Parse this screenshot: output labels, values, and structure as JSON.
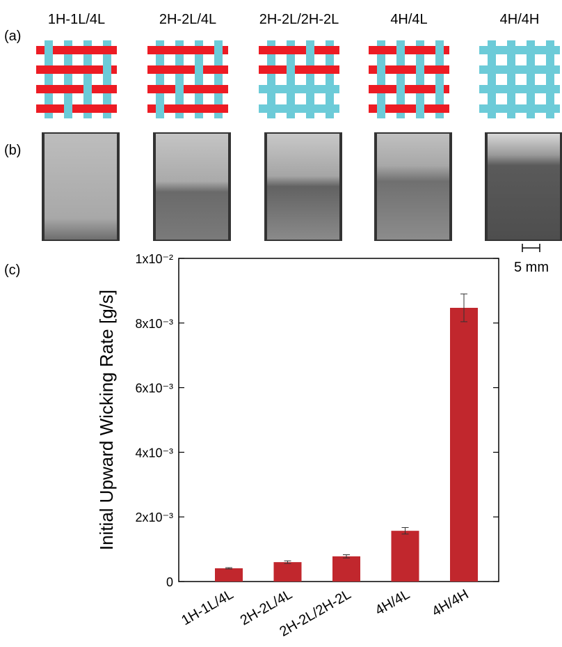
{
  "panel_labels": [
    "(a)",
    "(b)",
    "(c)"
  ],
  "patterns": [
    "1H-1L/4L",
    "2H-2L/4L",
    "2H-2L/2H-2L",
    "4H/4L",
    "4H/4H"
  ],
  "scale_bar": "5 mm",
  "chart_data": {
    "type": "bar",
    "y_label": "Initial Upward Wicking Rate [g/s]",
    "categories": [
      "1H-1L/4L",
      "2H-2L/4L",
      "2H-2L/2H-2L",
      "4H/4L",
      "4H/4H"
    ],
    "values": [
      0.00041,
      0.0006,
      0.00078,
      0.00157,
      0.00847
    ],
    "errors": [
      2e-05,
      4e-05,
      5e-05,
      0.0001,
      0.00043
    ],
    "color": "#c1272d",
    "ylim": [
      0,
      0.01
    ],
    "yticks": [
      0,
      {
        "value": 0.002,
        "label": "2x10⁻³"
      },
      {
        "value": 0.004,
        "label": "4x10⁻³"
      },
      {
        "value": 0.006,
        "label": "6x10⁻³"
      },
      {
        "value": 0.008,
        "label": "8x10⁻³"
      },
      {
        "value": 0.01,
        "label": "1x10⁻²"
      }
    ]
  }
}
